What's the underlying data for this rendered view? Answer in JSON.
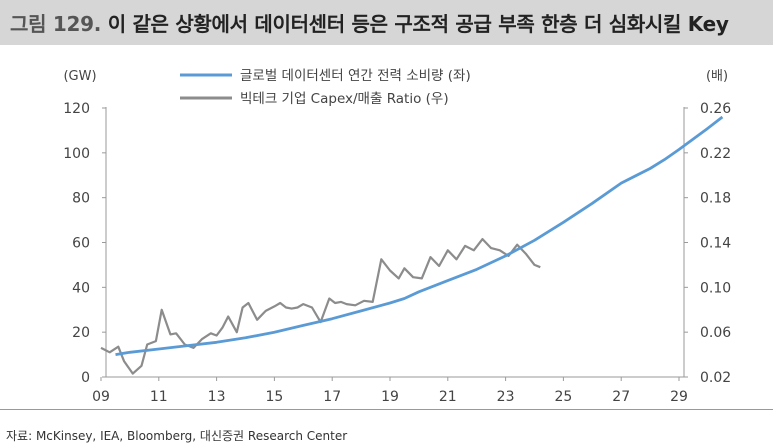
{
  "title": {
    "prefix": "그림 129.",
    "text": "이 같은 상황에서 데이터센터 등은 구조적 공급 부족 한층 더 심화시킬 Key"
  },
  "source": "자료: McKinsey, IEA, Bloomberg, 대신증권 Research Center",
  "colors": {
    "blue": "#5b9bd5",
    "gray": "#8c8c8c",
    "axis": "#9a9a9a"
  },
  "chart_data": {
    "type": "line",
    "left_unit": "(GW)",
    "right_unit": "(배)",
    "x_range": [
      9,
      31
    ],
    "x_ticks": [
      9,
      11,
      13,
      15,
      17,
      19,
      21,
      23,
      25,
      27,
      29
    ],
    "x_tick_labels": [
      "09",
      "11",
      "13",
      "15",
      "17",
      "19",
      "21",
      "23",
      "25",
      "27",
      "29"
    ],
    "y_left": {
      "min": 0,
      "max": 120,
      "ticks": [
        0,
        20,
        40,
        60,
        80,
        100,
        120
      ]
    },
    "y_right": {
      "min": 0.02,
      "max": 0.26,
      "ticks": [
        0.02,
        0.06,
        0.1,
        0.14,
        0.18,
        0.22,
        0.26
      ],
      "tick_labels": [
        "0.02",
        "0.06",
        "0.10",
        "0.14",
        "0.18",
        "0.22",
        "0.26"
      ]
    },
    "series": [
      {
        "name": "글로벌 데이터센터 연간 전력 소비량 (좌)",
        "axis": "left",
        "x": [
          9.5,
          10,
          11,
          12,
          13,
          14,
          15,
          16,
          17,
          18,
          19,
          19.5,
          20,
          21,
          22,
          23,
          24,
          25,
          26,
          27,
          28,
          28.5,
          29,
          30,
          30.5
        ],
        "y": [
          10,
          11,
          12.5,
          14,
          15.5,
          17.5,
          20,
          23,
          26,
          29.5,
          33,
          35,
          38,
          43,
          48,
          54,
          61,
          69,
          77.5,
          86.5,
          93,
          97,
          101.5,
          111,
          116
        ]
      },
      {
        "name": "빅테크 기업 Capex/매출 Ratio (우)",
        "axis": "right",
        "x": [
          9,
          9.3,
          9.6,
          9.8,
          10.1,
          10.4,
          10.6,
          10.9,
          11.1,
          11.4,
          11.6,
          11.9,
          12.2,
          12.5,
          12.8,
          13.0,
          13.2,
          13.4,
          13.7,
          13.9,
          14.1,
          14.4,
          14.7,
          15.0,
          15.2,
          15.4,
          15.6,
          15.8,
          16.0,
          16.3,
          16.6,
          16.9,
          17.1,
          17.3,
          17.5,
          17.8,
          18.1,
          18.4,
          18.7,
          19.0,
          19.3,
          19.5,
          19.8,
          20.1,
          20.4,
          20.7,
          21.0,
          21.3,
          21.6,
          21.9,
          22.2,
          22.5,
          22.8,
          23.1,
          23.4,
          23.7,
          24.0,
          24.2
        ],
        "y": [
          0.046,
          0.042,
          0.047,
          0.034,
          0.023,
          0.03,
          0.049,
          0.052,
          0.08,
          0.058,
          0.059,
          0.049,
          0.046,
          0.054,
          0.059,
          0.057,
          0.064,
          0.074,
          0.06,
          0.082,
          0.086,
          0.071,
          0.079,
          0.083,
          0.086,
          0.082,
          0.081,
          0.082,
          0.085,
          0.082,
          0.069,
          0.09,
          0.086,
          0.087,
          0.085,
          0.084,
          0.088,
          0.087,
          0.125,
          0.115,
          0.108,
          0.117,
          0.109,
          0.108,
          0.127,
          0.119,
          0.133,
          0.125,
          0.137,
          0.133,
          0.143,
          0.135,
          0.133,
          0.128,
          0.138,
          0.13,
          0.12,
          0.118
        ]
      }
    ]
  }
}
